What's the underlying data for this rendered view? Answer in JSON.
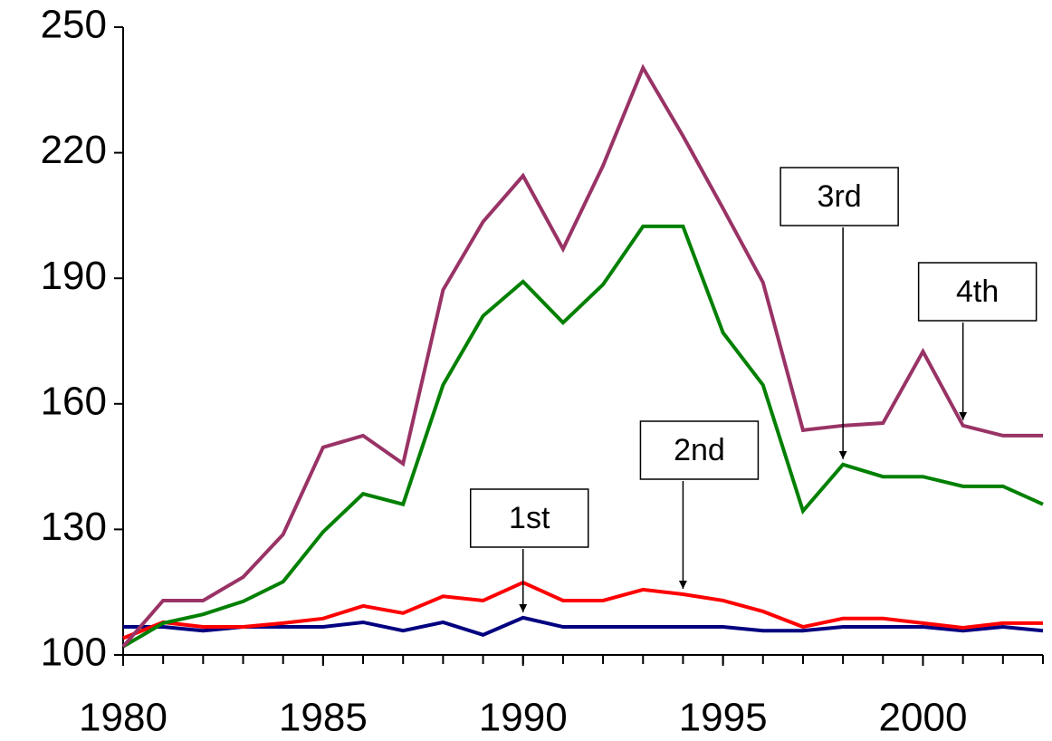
{
  "chart_data": {
    "type": "line",
    "x": [
      1980,
      1981,
      1982,
      1983,
      1984,
      1985,
      1986,
      1987,
      1988,
      1989,
      1990,
      1991,
      1992,
      1993,
      1994,
      1995,
      1996,
      1997,
      1998,
      1999,
      2000,
      2001,
      2002,
      2003
    ],
    "xlim": [
      1980,
      2003
    ],
    "xticks": [
      1980,
      1985,
      1990,
      1995,
      2000
    ],
    "ylim": [
      100,
      250
    ],
    "yticks": [
      100,
      130,
      160,
      190,
      220,
      250
    ],
    "grid": false,
    "legend": "callouts",
    "series": [
      {
        "name": "1st",
        "color": "#000080",
        "callout_x": 1990,
        "values": [
          106.7,
          106.7,
          105.8,
          106.7,
          106.7,
          106.7,
          107.8,
          105.8,
          107.8,
          104.8,
          108.9,
          106.7,
          106.7,
          106.7,
          106.7,
          106.7,
          105.8,
          105.8,
          106.7,
          106.7,
          106.7,
          105.8,
          106.7,
          105.8
        ]
      },
      {
        "name": "2nd",
        "color": "#ff0000",
        "callout_x": 1994,
        "values": [
          104,
          107.8,
          106.7,
          106.7,
          107.6,
          108.7,
          111.7,
          110,
          114,
          113,
          117.3,
          113,
          113,
          115.6,
          114.5,
          113,
          110.4,
          106.7,
          108.7,
          108.7,
          107.6,
          106.5,
          107.6,
          107.6
        ]
      },
      {
        "name": "3rd",
        "color": "#008000",
        "callout_x": 1998,
        "values": [
          102,
          107.6,
          109.7,
          112.8,
          117.5,
          129.4,
          138.5,
          136,
          164.5,
          181,
          189.2,
          179.4,
          188.5,
          202.4,
          202.4,
          177,
          164.5,
          134.4,
          145.5,
          142.6,
          142.6,
          140.3,
          140.3,
          136
        ]
      },
      {
        "name": "4th",
        "color": "#993366",
        "callout_x": 2001,
        "values": [
          102,
          113,
          113,
          118.6,
          128.8,
          149.6,
          152.4,
          145.7,
          187.2,
          203.5,
          214.5,
          197,
          216.9,
          240.3,
          224,
          206.7,
          189,
          153.7,
          154.8,
          155.4,
          172.5,
          154.8,
          152.4,
          152.4
        ]
      }
    ]
  }
}
